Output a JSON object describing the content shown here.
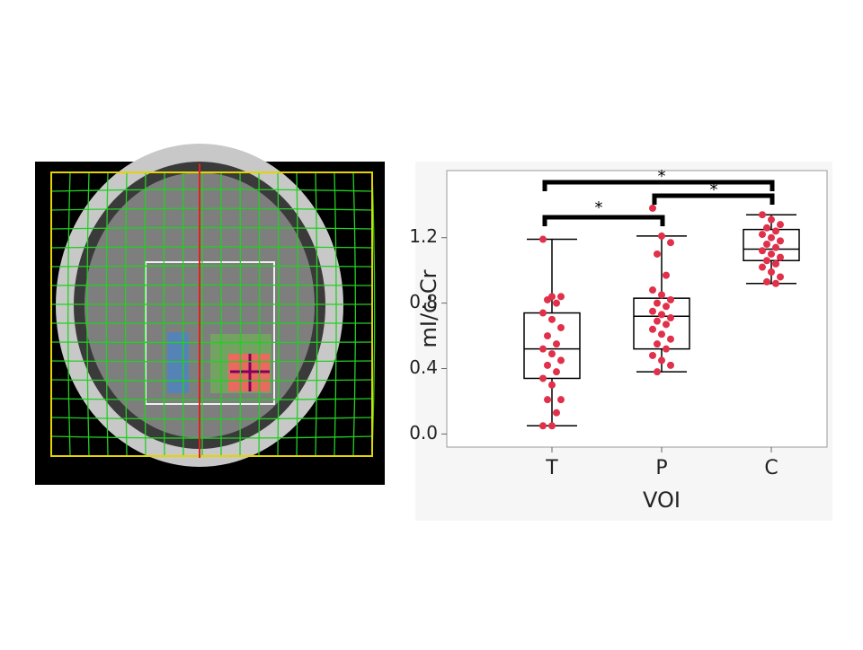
{
  "chart_data": {
    "type": "box",
    "x_label": "VOI",
    "y_label": "mI/c-Cr",
    "categories": [
      "T",
      "P",
      "C"
    ],
    "boxes": [
      {
        "whisker_low": 0.05,
        "q1": 0.34,
        "median": 0.52,
        "q3": 0.74,
        "whisker_high": 1.19
      },
      {
        "whisker_low": 0.38,
        "q1": 0.52,
        "median": 0.72,
        "q3": 0.83,
        "whisker_high": 1.21
      },
      {
        "whisker_low": 0.92,
        "q1": 1.06,
        "median": 1.13,
        "q3": 1.25,
        "whisker_high": 1.34
      }
    ],
    "points": [
      [
        1.19,
        0.84,
        0.84,
        0.82,
        0.8,
        0.74,
        0.7,
        0.65,
        0.6,
        0.55,
        0.52,
        0.49,
        0.45,
        0.42,
        0.38,
        0.34,
        0.3,
        0.21,
        0.21,
        0.13,
        0.05,
        0.05
      ],
      [
        1.38,
        1.21,
        1.17,
        1.1,
        0.97,
        0.88,
        0.85,
        0.82,
        0.8,
        0.78,
        0.75,
        0.73,
        0.71,
        0.69,
        0.67,
        0.64,
        0.61,
        0.58,
        0.55,
        0.52,
        0.48,
        0.45,
        0.42,
        0.38
      ],
      [
        1.34,
        1.31,
        1.28,
        1.26,
        1.24,
        1.22,
        1.2,
        1.18,
        1.16,
        1.14,
        1.12,
        1.1,
        1.08,
        1.06,
        1.04,
        1.02,
        0.99,
        0.96,
        0.93,
        0.92
      ]
    ],
    "point_color": "#e0304a",
    "ylim": [
      -0.08,
      1.61
    ],
    "yticks": [
      {
        "value": 0,
        "label": "0.0"
      },
      0.4,
      0.8,
      1.2
    ],
    "annotations": [
      "*",
      "*",
      "*"
    ]
  }
}
